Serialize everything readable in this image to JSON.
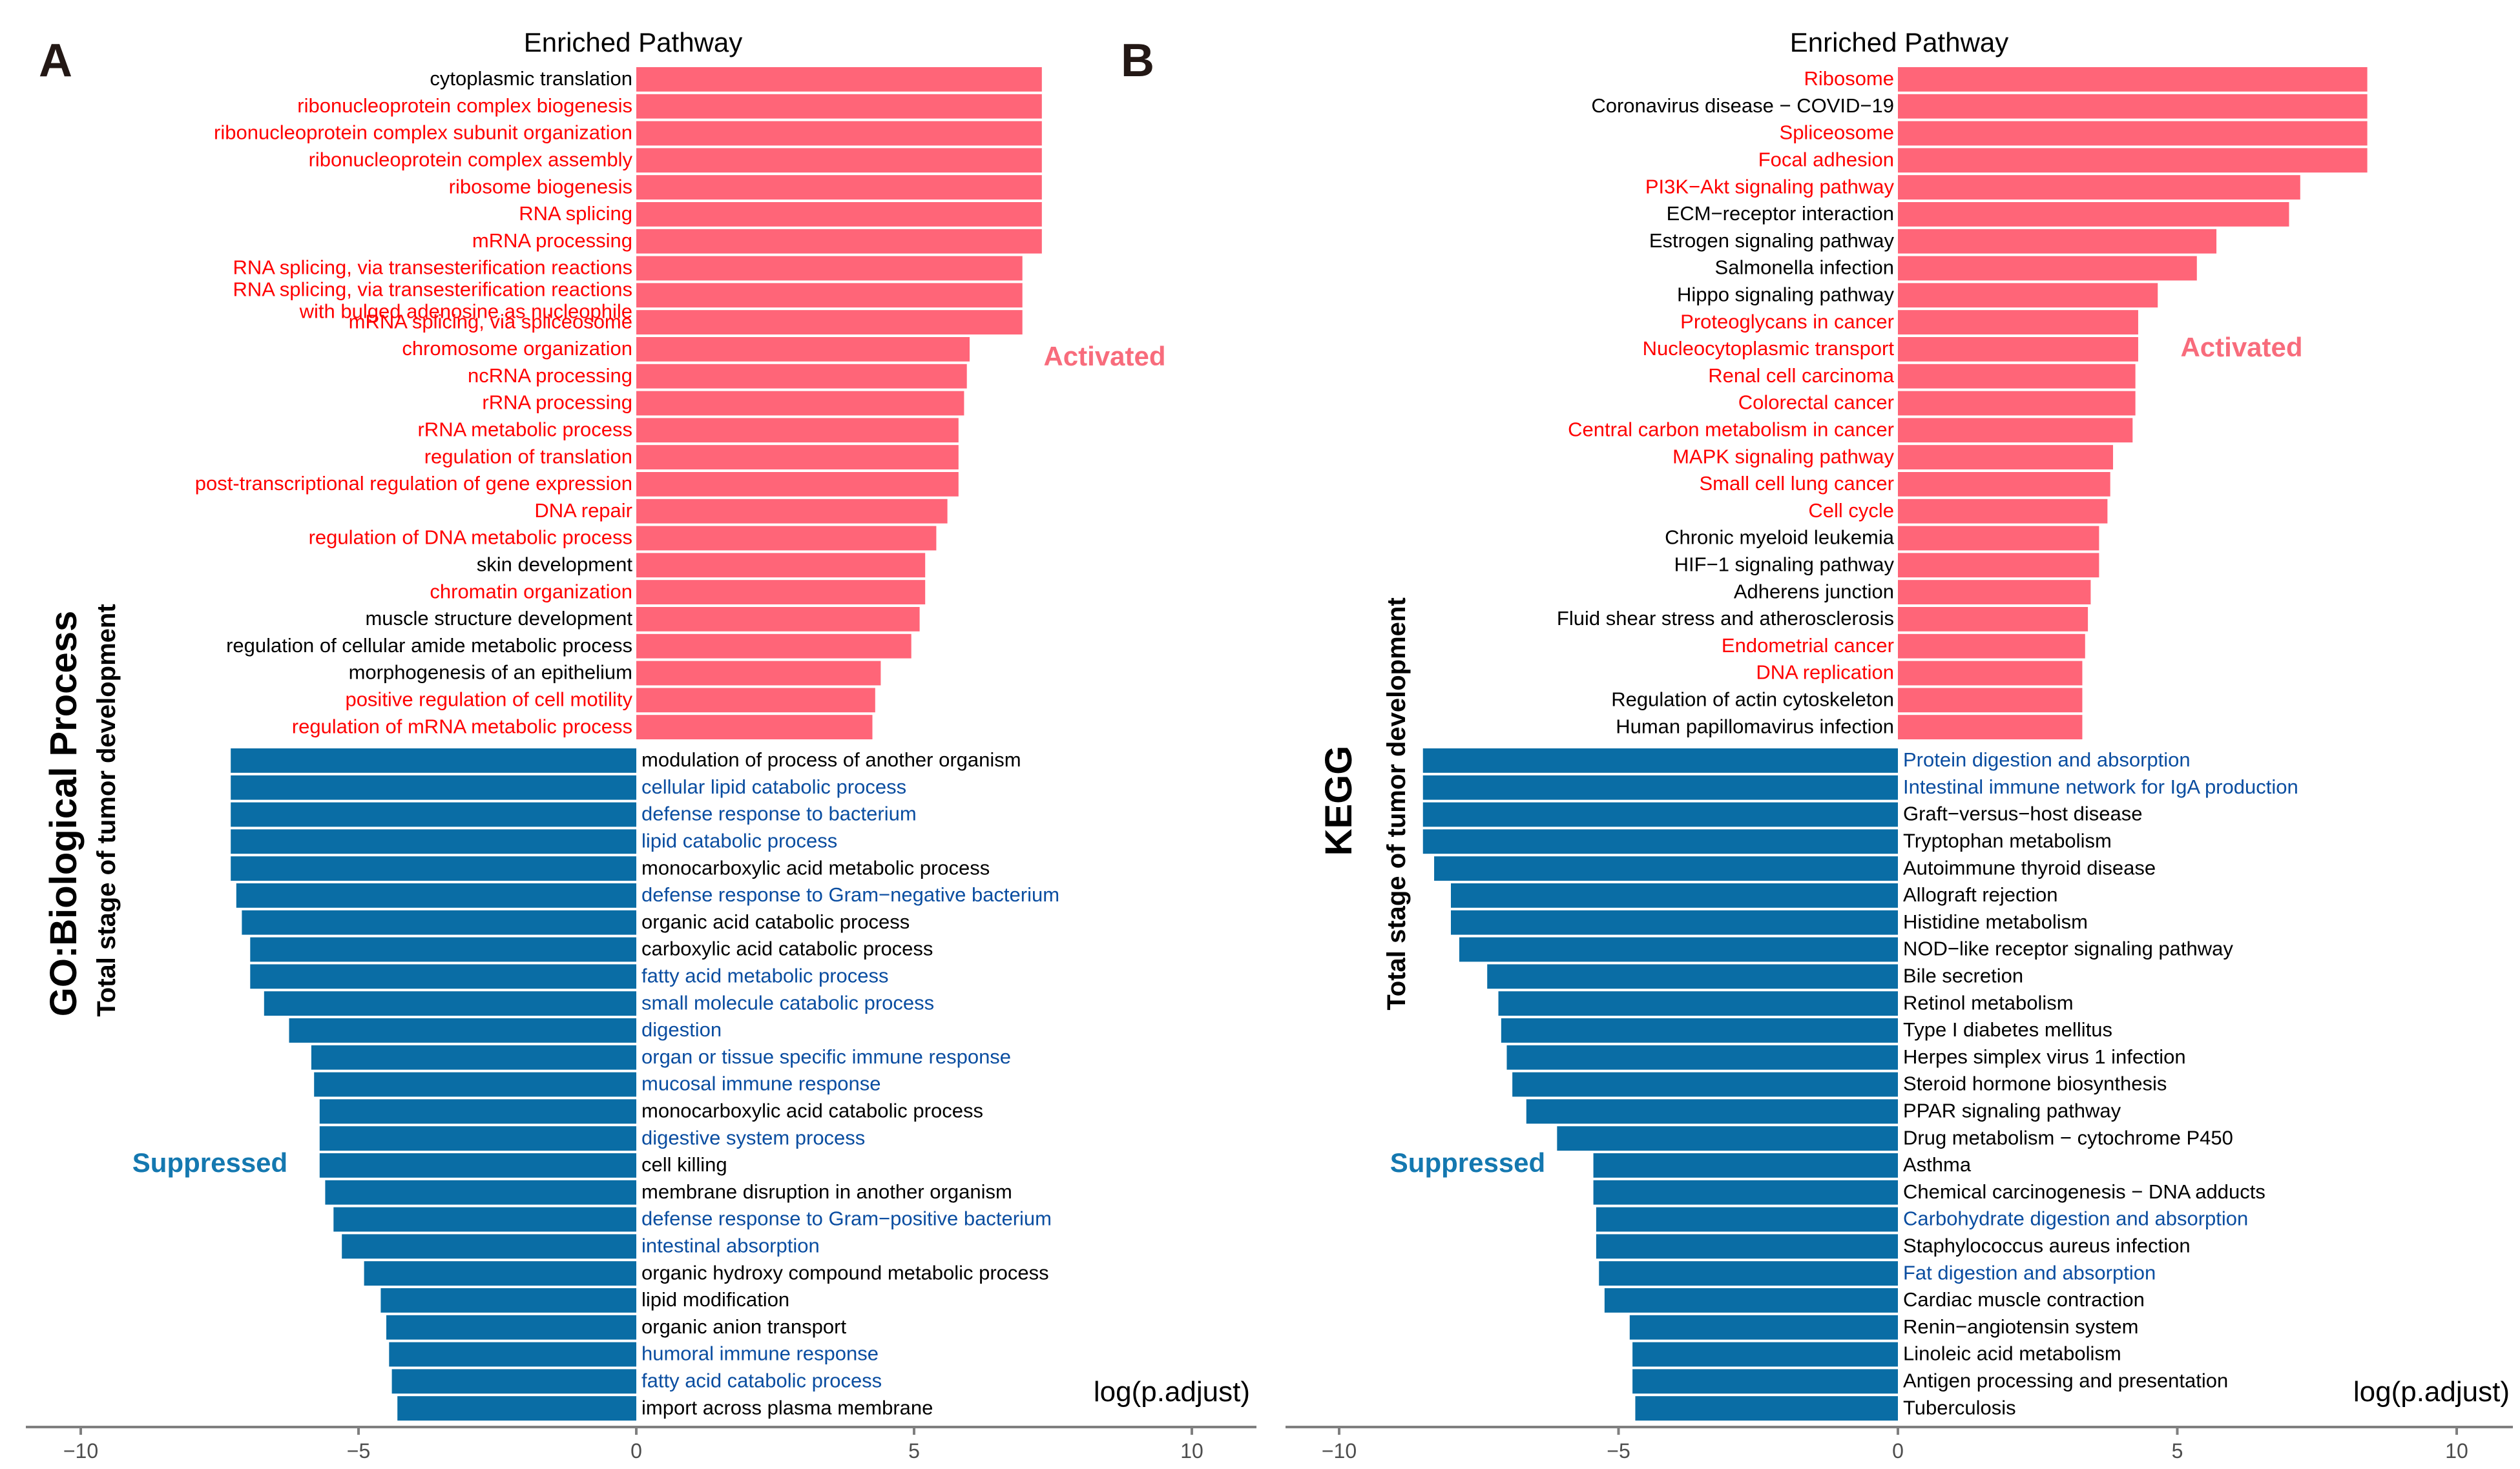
{
  "colors": {
    "activated_bar": "#FF6578",
    "suppressed_bar": "#0A6DA5",
    "activated_label": "#FF0000",
    "suppressed_label": "#0A4DA0",
    "neutral_label": "#000000",
    "activated_tag": "#F86C7C",
    "suppressed_tag": "#1478B0",
    "axis": "#7F7F7F"
  },
  "chart_data": [
    {
      "type": "bar",
      "orientation": "horizontal",
      "panel_letter": "A",
      "title": "Enriched Pathway",
      "ylabel_main": "GO:Biological Process",
      "ylabel_sub": "Total stage of tumor development",
      "xlabel": "log(p.adjust)",
      "xlim": [
        -10.5,
        11
      ],
      "xticks": [
        -10,
        -5,
        0,
        5,
        10
      ],
      "activated_tag": "Activated",
      "suppressed_tag": "Suppressed",
      "activated": [
        {
          "label": "cytoplasmic translation",
          "value": 7.3,
          "highlight": false
        },
        {
          "label": "ribonucleoprotein complex biogenesis",
          "value": 7.3,
          "highlight": true
        },
        {
          "label": "ribonucleoprotein complex subunit organization",
          "value": 7.3,
          "highlight": true
        },
        {
          "label": "ribonucleoprotein complex assembly",
          "value": 7.3,
          "highlight": true
        },
        {
          "label": "ribosome biogenesis",
          "value": 7.3,
          "highlight": true
        },
        {
          "label": "RNA splicing",
          "value": 7.3,
          "highlight": true
        },
        {
          "label": "mRNA processing",
          "value": 7.3,
          "highlight": true
        },
        {
          "label": "RNA splicing, via transesterification reactions",
          "value": 6.95,
          "highlight": true
        },
        {
          "label": "RNA splicing, via transesterification reactions with bulged adenosine as nucleophile",
          "value": 6.95,
          "highlight": true
        },
        {
          "label": "mRNA splicing, via spliceosome",
          "value": 6.95,
          "highlight": true
        },
        {
          "label": "chromosome organization",
          "value": 6.0,
          "highlight": true
        },
        {
          "label": "ncRNA processing",
          "value": 5.95,
          "highlight": true
        },
        {
          "label": "rRNA processing",
          "value": 5.9,
          "highlight": true
        },
        {
          "label": "rRNA metabolic process",
          "value": 5.8,
          "highlight": true
        },
        {
          "label": "regulation of translation",
          "value": 5.8,
          "highlight": true
        },
        {
          "label": "post-transcriptional regulation of gene expression",
          "value": 5.8,
          "highlight": true
        },
        {
          "label": "DNA repair",
          "value": 5.6,
          "highlight": true
        },
        {
          "label": "regulation of DNA metabolic process",
          "value": 5.4,
          "highlight": true
        },
        {
          "label": "skin development",
          "value": 5.2,
          "highlight": false
        },
        {
          "label": "chromatin organization",
          "value": 5.2,
          "highlight": true
        },
        {
          "label": "muscle structure development",
          "value": 5.1,
          "highlight": false
        },
        {
          "label": "regulation of cellular amide metabolic process",
          "value": 4.95,
          "highlight": false
        },
        {
          "label": "morphogenesis of an epithelium",
          "value": 4.4,
          "highlight": false
        },
        {
          "label": "positive regulation of cell motility",
          "value": 4.3,
          "highlight": true
        },
        {
          "label": "regulation of mRNA metabolic process",
          "value": 4.25,
          "highlight": true
        }
      ],
      "suppressed": [
        {
          "label": "modulation of process of another organism",
          "value": -7.3,
          "highlight": false
        },
        {
          "label": "cellular lipid catabolic process",
          "value": -7.3,
          "highlight": true
        },
        {
          "label": "defense response to bacterium",
          "value": -7.3,
          "highlight": true
        },
        {
          "label": "lipid catabolic process",
          "value": -7.3,
          "highlight": true
        },
        {
          "label": "monocarboxylic acid metabolic process",
          "value": -7.3,
          "highlight": false
        },
        {
          "label": "defense response to Gram−negative bacterium",
          "value": -7.2,
          "highlight": true
        },
        {
          "label": "organic acid catabolic process",
          "value": -7.1,
          "highlight": false
        },
        {
          "label": "carboxylic acid catabolic process",
          "value": -6.95,
          "highlight": false
        },
        {
          "label": "fatty acid metabolic process",
          "value": -6.95,
          "highlight": true
        },
        {
          "label": "small molecule catabolic process",
          "value": -6.7,
          "highlight": true
        },
        {
          "label": "digestion",
          "value": -6.25,
          "highlight": true
        },
        {
          "label": "organ or tissue specific immune response",
          "value": -5.85,
          "highlight": true
        },
        {
          "label": "mucosal immune response",
          "value": -5.8,
          "highlight": true
        },
        {
          "label": "monocarboxylic acid catabolic process",
          "value": -5.7,
          "highlight": false
        },
        {
          "label": "digestive system process",
          "value": -5.7,
          "highlight": true
        },
        {
          "label": "cell killing",
          "value": -5.7,
          "highlight": false
        },
        {
          "label": "membrane disruption in another organism",
          "value": -5.6,
          "highlight": false
        },
        {
          "label": "defense response to Gram−positive bacterium",
          "value": -5.45,
          "highlight": true
        },
        {
          "label": "intestinal absorption",
          "value": -5.3,
          "highlight": true
        },
        {
          "label": "organic hydroxy compound metabolic process",
          "value": -4.9,
          "highlight": false
        },
        {
          "label": "lipid modification",
          "value": -4.6,
          "highlight": false
        },
        {
          "label": "organic anion transport",
          "value": -4.5,
          "highlight": false
        },
        {
          "label": "humoral immune response",
          "value": -4.45,
          "highlight": true
        },
        {
          "label": "fatty acid catabolic process",
          "value": -4.4,
          "highlight": true
        },
        {
          "label": "import across plasma membrane",
          "value": -4.3,
          "highlight": false
        }
      ]
    },
    {
      "type": "bar",
      "orientation": "horizontal",
      "panel_letter": "B",
      "title": "Enriched Pathway",
      "ylabel_main": "KEGG",
      "ylabel_sub": "Total stage of tumor development",
      "xlabel": "log(p.adjust)",
      "xlim": [
        -10.5,
        11
      ],
      "xticks": [
        -10,
        -5,
        0,
        5,
        10
      ],
      "activated_tag": "Activated",
      "suppressed_tag": "Suppressed",
      "activated": [
        {
          "label": "Ribosome",
          "value": 8.4,
          "highlight": true
        },
        {
          "label": "Coronavirus disease − COVID−19",
          "value": 8.4,
          "highlight": false
        },
        {
          "label": "Spliceosome",
          "value": 8.4,
          "highlight": true
        },
        {
          "label": "Focal adhesion",
          "value": 8.4,
          "highlight": true
        },
        {
          "label": "PI3K−Akt signaling pathway",
          "value": 7.2,
          "highlight": true
        },
        {
          "label": "ECM−receptor interaction",
          "value": 7.0,
          "highlight": false
        },
        {
          "label": "Estrogen signaling pathway",
          "value": 5.7,
          "highlight": false
        },
        {
          "label": "Salmonella infection",
          "value": 5.35,
          "highlight": false
        },
        {
          "label": "Hippo signaling pathway",
          "value": 4.65,
          "highlight": false
        },
        {
          "label": "Proteoglycans in cancer",
          "value": 4.3,
          "highlight": true
        },
        {
          "label": "Nucleocytoplasmic transport",
          "value": 4.3,
          "highlight": true
        },
        {
          "label": "Renal cell carcinoma",
          "value": 4.25,
          "highlight": true
        },
        {
          "label": "Colorectal cancer",
          "value": 4.25,
          "highlight": true
        },
        {
          "label": "Central carbon metabolism in cancer",
          "value": 4.2,
          "highlight": true
        },
        {
          "label": "MAPK signaling pathway",
          "value": 3.85,
          "highlight": true
        },
        {
          "label": "Small cell lung cancer",
          "value": 3.8,
          "highlight": true
        },
        {
          "label": "Cell cycle",
          "value": 3.75,
          "highlight": true
        },
        {
          "label": "Chronic myeloid leukemia",
          "value": 3.6,
          "highlight": false
        },
        {
          "label": "HIF−1 signaling pathway",
          "value": 3.6,
          "highlight": false
        },
        {
          "label": "Adherens junction",
          "value": 3.45,
          "highlight": false
        },
        {
          "label": "Fluid shear stress and atherosclerosis",
          "value": 3.4,
          "highlight": false
        },
        {
          "label": "Endometrial cancer",
          "value": 3.35,
          "highlight": true
        },
        {
          "label": "DNA  replication",
          "value": 3.3,
          "highlight": true
        },
        {
          "label": "Regulation of actin cytoskeleton",
          "value": 3.3,
          "highlight": false
        },
        {
          "label": "Human papillomavirus  infection",
          "value": 3.3,
          "highlight": false
        }
      ],
      "suppressed": [
        {
          "label": "Protein digestion and absorption",
          "value": -8.5,
          "highlight": true
        },
        {
          "label": "Intestinal immune network for IgA production",
          "value": -8.5,
          "highlight": true
        },
        {
          "label": "Graft−versus−host disease",
          "value": -8.5,
          "highlight": false
        },
        {
          "label": "Tryptophan metabolism",
          "value": -8.5,
          "highlight": false
        },
        {
          "label": "Autoimmune thyroid disease",
          "value": -8.3,
          "highlight": false
        },
        {
          "label": "Allograft rejection",
          "value": -8.0,
          "highlight": false
        },
        {
          "label": "Histidine metabolism",
          "value": -8.0,
          "highlight": false
        },
        {
          "label": "NOD−like receptor signaling pathway",
          "value": -7.85,
          "highlight": false
        },
        {
          "label": "Bile secretion",
          "value": -7.35,
          "highlight": false
        },
        {
          "label": "Retinol metabolism",
          "value": -7.15,
          "highlight": false
        },
        {
          "label": "Type I diabetes mellitus",
          "value": -7.1,
          "highlight": false
        },
        {
          "label": "Herpes simplex virus 1 infection",
          "value": -7.0,
          "highlight": false
        },
        {
          "label": "Steroid hormone biosynthesis",
          "value": -6.9,
          "highlight": false
        },
        {
          "label": "PPAR signaling pathway",
          "value": -6.65,
          "highlight": false
        },
        {
          "label": "Drug metabolism − cytochrome P450",
          "value": -6.1,
          "highlight": false
        },
        {
          "label": "Asthma",
          "value": -5.45,
          "highlight": false
        },
        {
          "label": "Chemical carcinogenesis − DNA adducts",
          "value": -5.45,
          "highlight": false
        },
        {
          "label": "Carbohydrate digestion and absorption",
          "value": -5.4,
          "highlight": true
        },
        {
          "label": "Staphylococcus aureus infection",
          "value": -5.4,
          "highlight": false
        },
        {
          "label": "Fat digestion and absorption",
          "value": -5.35,
          "highlight": true
        },
        {
          "label": "Cardiac muscle contraction",
          "value": -5.25,
          "highlight": false
        },
        {
          "label": "Renin−angiotensin system",
          "value": -4.8,
          "highlight": false
        },
        {
          "label": "Linoleic acid metabolism",
          "value": -4.75,
          "highlight": false
        },
        {
          "label": "Antigen processing and presentation",
          "value": -4.75,
          "highlight": false
        },
        {
          "label": "Tuberculosis",
          "value": -4.7,
          "highlight": false
        }
      ]
    }
  ]
}
